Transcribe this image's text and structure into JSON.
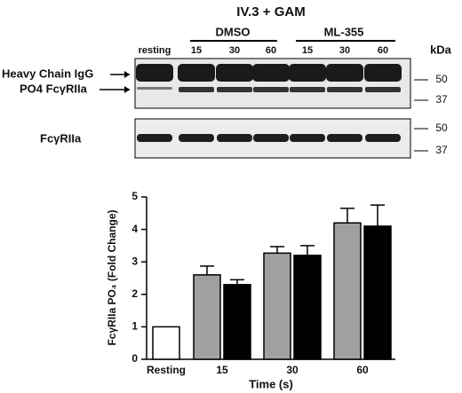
{
  "blot": {
    "title": "IV.3 + GAM",
    "groups": [
      "DMSO",
      "ML-355"
    ],
    "lanes": [
      "resting",
      "15",
      "30",
      "60",
      "15",
      "30",
      "60"
    ],
    "unit": "kDa",
    "top_labels": [
      "Heavy Chain IgG",
      "PO4 FcγRIIa"
    ],
    "top_markers": [
      50,
      37
    ],
    "bottom_label": "FcγRIIa",
    "bottom_markers": [
      50,
      37
    ]
  },
  "chart_data": {
    "type": "bar",
    "ylabel": "FcγRIIa PO₄ (Fold Change)",
    "xlabel": "Time (s)",
    "categories": [
      "Resting",
      "15",
      "30",
      "60"
    ],
    "series": [
      {
        "color": "#ffffff",
        "values": [
          1,
          null,
          null,
          null
        ],
        "errors": [
          null,
          null,
          null,
          null
        ]
      },
      {
        "color": "#a0a0a0",
        "values": [
          null,
          2.6,
          3.27,
          4.2
        ],
        "errors": [
          null,
          0.27,
          0.2,
          0.45
        ]
      },
      {
        "color": "#000000",
        "values": [
          null,
          2.3,
          3.2,
          4.1
        ],
        "errors": [
          null,
          0.15,
          0.3,
          0.65
        ]
      }
    ],
    "ylim": [
      0,
      5
    ],
    "yticks": [
      0,
      1,
      2,
      3,
      4,
      5
    ]
  }
}
